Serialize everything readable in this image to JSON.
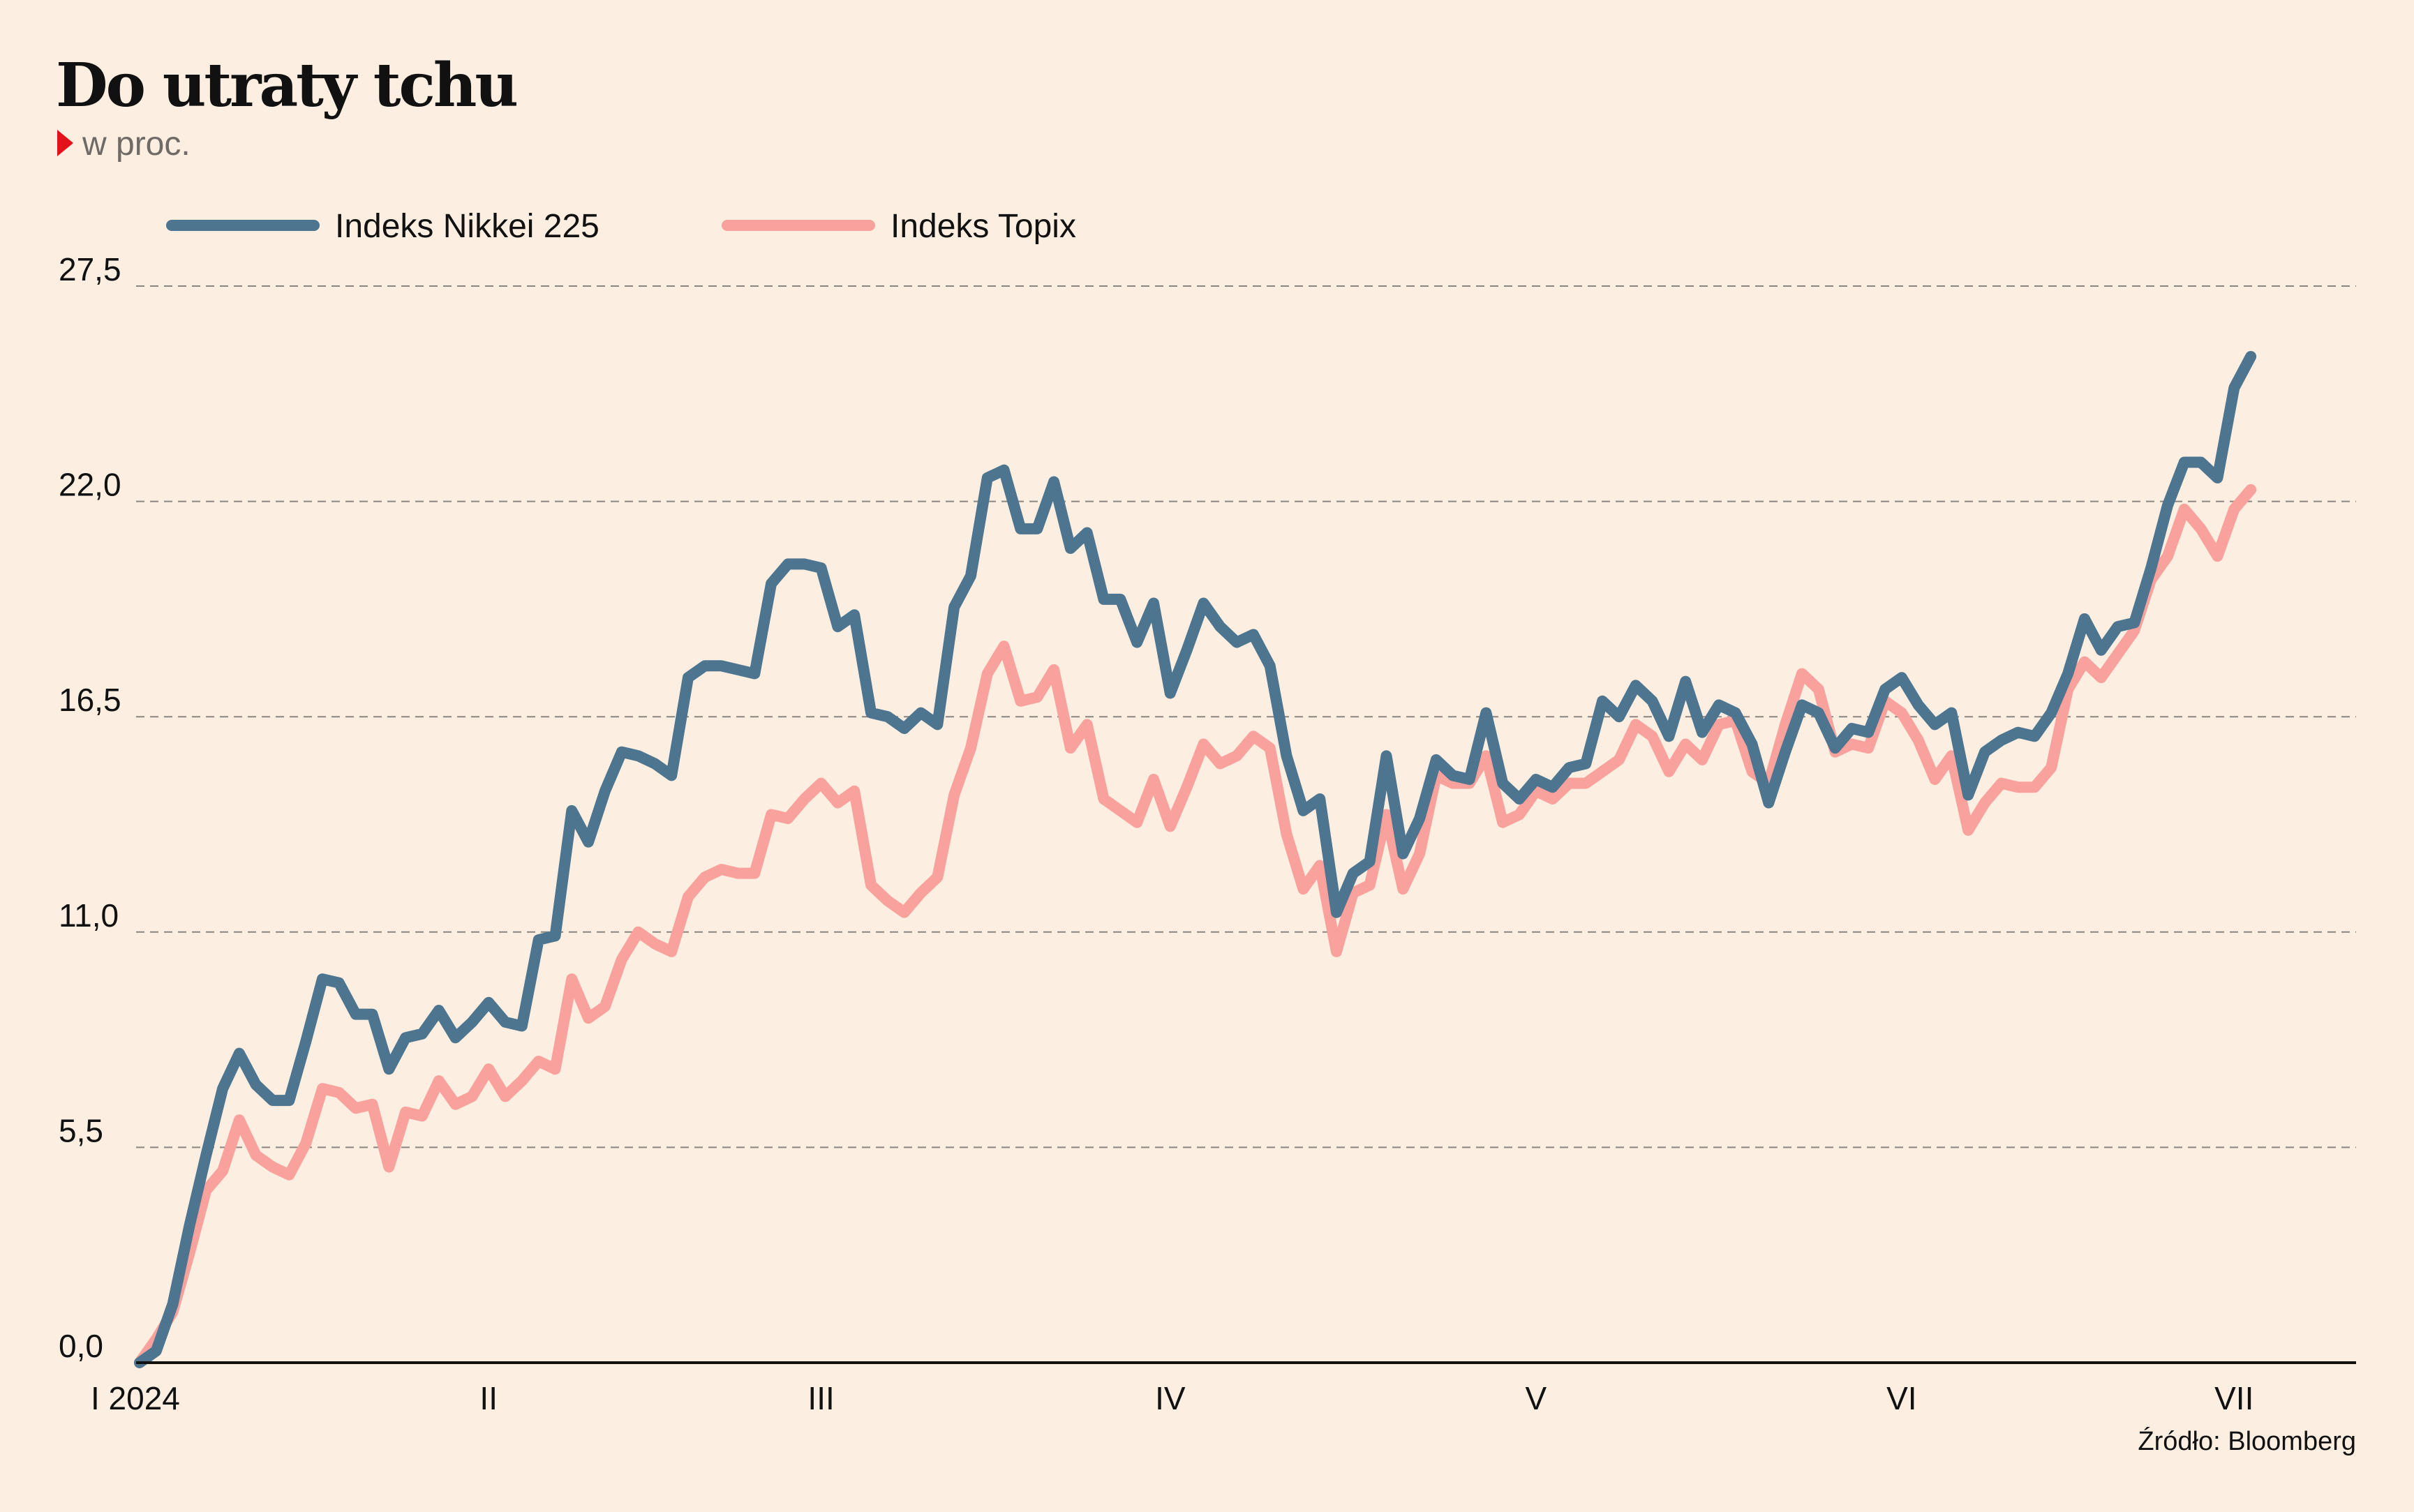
{
  "chart_data": {
    "type": "line",
    "title": "Do utraty tchu",
    "subtitle": "w proc.",
    "source": "Źródło: Bloomberg",
    "x_tick_labels": [
      "I 2024",
      "II",
      "III",
      "IV",
      "V",
      "VI",
      "VII"
    ],
    "x_tick_positions": [
      0,
      21,
      41,
      62,
      84,
      106,
      126
    ],
    "y_ticks": [
      0,
      5.5,
      11,
      16.5,
      22,
      27.5
    ],
    "y_tick_labels": [
      "0,0",
      "5,5",
      "11,0",
      "16,5",
      "22,0",
      "27,5"
    ],
    "ylim": [
      0,
      27.5
    ],
    "xlim": [
      0,
      133
    ],
    "grid": true,
    "legend_position": "top-left",
    "series": [
      {
        "name": "Indeks Nikkei 225",
        "color": "#4d7590",
        "values": [
          0.0,
          0.3,
          1.5,
          3.5,
          5.3,
          7.0,
          7.9,
          7.1,
          6.7,
          6.7,
          8.2,
          9.8,
          9.7,
          8.9,
          8.9,
          7.5,
          8.3,
          8.4,
          9.0,
          8.3,
          8.7,
          9.2,
          8.7,
          8.6,
          10.8,
          10.9,
          14.1,
          13.3,
          14.6,
          15.6,
          15.5,
          15.3,
          15.0,
          17.5,
          17.8,
          17.8,
          17.7,
          17.6,
          19.9,
          20.4,
          20.4,
          20.3,
          18.8,
          19.1,
          16.6,
          16.5,
          16.2,
          16.6,
          16.3,
          19.3,
          20.1,
          22.6,
          22.8,
          21.3,
          21.3,
          22.5,
          20.8,
          21.2,
          19.5,
          19.5,
          18.4,
          19.4,
          17.1,
          18.2,
          19.4,
          18.8,
          18.4,
          18.6,
          17.8,
          15.5,
          14.1,
          14.4,
          11.5,
          12.5,
          12.8,
          15.5,
          13.0,
          13.9,
          15.4,
          15.0,
          14.9,
          16.6,
          14.8,
          14.4,
          14.9,
          14.7,
          15.2,
          15.3,
          16.9,
          16.5,
          17.3,
          16.9,
          16.0,
          17.4,
          16.1,
          16.8,
          16.6,
          15.8,
          14.3,
          15.6,
          16.8,
          16.6,
          15.7,
          16.2,
          16.1,
          17.2,
          17.5,
          16.8,
          16.3,
          16.6,
          14.5,
          15.6,
          15.9,
          16.1,
          16.0,
          16.6,
          17.6,
          19.0,
          18.2,
          18.8,
          18.9,
          20.3,
          21.9,
          23.0,
          23.0,
          22.6,
          24.9,
          25.7
        ]
      },
      {
        "name": "Indeks Topix",
        "color": "#f9a19c",
        "values": [
          0.0,
          0.6,
          1.3,
          2.8,
          4.4,
          4.9,
          6.2,
          5.3,
          5.0,
          4.8,
          5.6,
          7.0,
          6.9,
          6.5,
          6.6,
          5.0,
          6.4,
          6.3,
          7.2,
          6.6,
          6.8,
          7.5,
          6.8,
          7.2,
          7.7,
          7.5,
          9.8,
          8.8,
          9.1,
          10.3,
          11.0,
          10.7,
          10.5,
          11.9,
          12.4,
          12.6,
          12.5,
          12.5,
          14.0,
          13.9,
          14.4,
          14.8,
          14.3,
          14.6,
          12.2,
          11.8,
          11.5,
          12.0,
          12.4,
          14.5,
          15.7,
          17.6,
          18.3,
          16.9,
          17.0,
          17.7,
          15.7,
          16.3,
          14.4,
          14.1,
          13.8,
          14.9,
          13.7,
          14.7,
          15.8,
          15.3,
          15.5,
          16.0,
          15.7,
          13.5,
          12.1,
          12.7,
          10.5,
          12.0,
          12.2,
          14.0,
          12.1,
          13.0,
          15.0,
          14.8,
          14.8,
          15.5,
          13.8,
          14.0,
          14.6,
          14.4,
          14.8,
          14.8,
          15.1,
          15.4,
          16.3,
          16.0,
          15.1,
          15.8,
          15.4,
          16.3,
          16.4,
          15.1,
          14.8,
          16.3,
          17.6,
          17.2,
          15.6,
          15.8,
          15.7,
          16.9,
          16.6,
          15.9,
          14.9,
          15.5,
          13.6,
          14.3,
          14.8,
          14.7,
          14.7,
          15.2,
          17.2,
          17.9,
          17.5,
          18.1,
          18.7,
          20.0,
          20.6,
          21.8,
          21.3,
          20.6,
          21.8,
          22.3
        ]
      }
    ]
  }
}
